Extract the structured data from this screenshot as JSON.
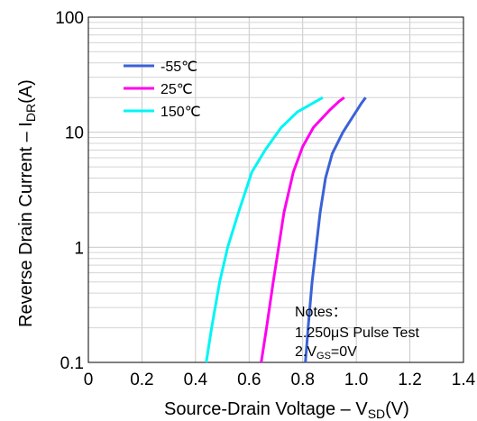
{
  "chart_data": {
    "type": "line",
    "xlabel_main": "Source-Drain Voltage –  V",
    "xlabel_sub": "SD",
    "xlabel_unit": "(V)",
    "ylabel_main": "Reverse Drain Current  –  I",
    "ylabel_sub": "DR",
    "ylabel_unit": "(A)",
    "xlim": [
      0,
      1.4
    ],
    "ylim": [
      0.1,
      100
    ],
    "y_scale": "log",
    "grid": true,
    "legend_position": "top-left",
    "x_ticks": [
      {
        "value": 0,
        "label": "0"
      },
      {
        "value": 0.2,
        "label": "0.2"
      },
      {
        "value": 0.4,
        "label": "0.4"
      },
      {
        "value": 0.6,
        "label": "0.6"
      },
      {
        "value": 0.8,
        "label": "0.8"
      },
      {
        "value": 1.0,
        "label": "1.0"
      },
      {
        "value": 1.2,
        "label": "1.2"
      },
      {
        "value": 1.4,
        "label": "1.4"
      }
    ],
    "y_ticks": [
      {
        "value": 0.1,
        "label": "0.1"
      },
      {
        "value": 1,
        "label": "1"
      },
      {
        "value": 10,
        "label": "10"
      },
      {
        "value": 100,
        "label": "100"
      }
    ],
    "series": [
      {
        "name": "-55℃",
        "color": "#3a62d6",
        "points": [
          [
            0.81,
            0.1
          ],
          [
            0.82,
            0.2
          ],
          [
            0.835,
            0.5
          ],
          [
            0.85,
            1.0
          ],
          [
            0.865,
            2.0
          ],
          [
            0.885,
            4.0
          ],
          [
            0.91,
            6.5
          ],
          [
            0.95,
            10.0
          ],
          [
            0.99,
            14.0
          ],
          [
            1.02,
            18.0
          ],
          [
            1.035,
            20.0
          ]
        ]
      },
      {
        "name": "25℃",
        "color": "#ff00ee",
        "points": [
          [
            0.645,
            0.1
          ],
          [
            0.665,
            0.2
          ],
          [
            0.69,
            0.5
          ],
          [
            0.71,
            1.0
          ],
          [
            0.73,
            2.0
          ],
          [
            0.765,
            4.5
          ],
          [
            0.8,
            7.5
          ],
          [
            0.84,
            11.0
          ],
          [
            0.9,
            15.5
          ],
          [
            0.935,
            18.5
          ],
          [
            0.955,
            20.0
          ]
        ]
      },
      {
        "name": "150℃",
        "color": "#00f5f5",
        "points": [
          [
            0.44,
            0.1
          ],
          [
            0.46,
            0.2
          ],
          [
            0.49,
            0.5
          ],
          [
            0.52,
            1.0
          ],
          [
            0.56,
            2.0
          ],
          [
            0.61,
            4.5
          ],
          [
            0.66,
            7.0
          ],
          [
            0.72,
            11.0
          ],
          [
            0.78,
            15.0
          ],
          [
            0.84,
            18.0
          ],
          [
            0.875,
            20.0
          ]
        ]
      }
    ],
    "notes": {
      "title": "Notes：",
      "line1": "1.250μS Pulse Test",
      "line2_prefix": "2.V",
      "line2_sub": "GS",
      "line2_suffix": "=0V"
    }
  }
}
